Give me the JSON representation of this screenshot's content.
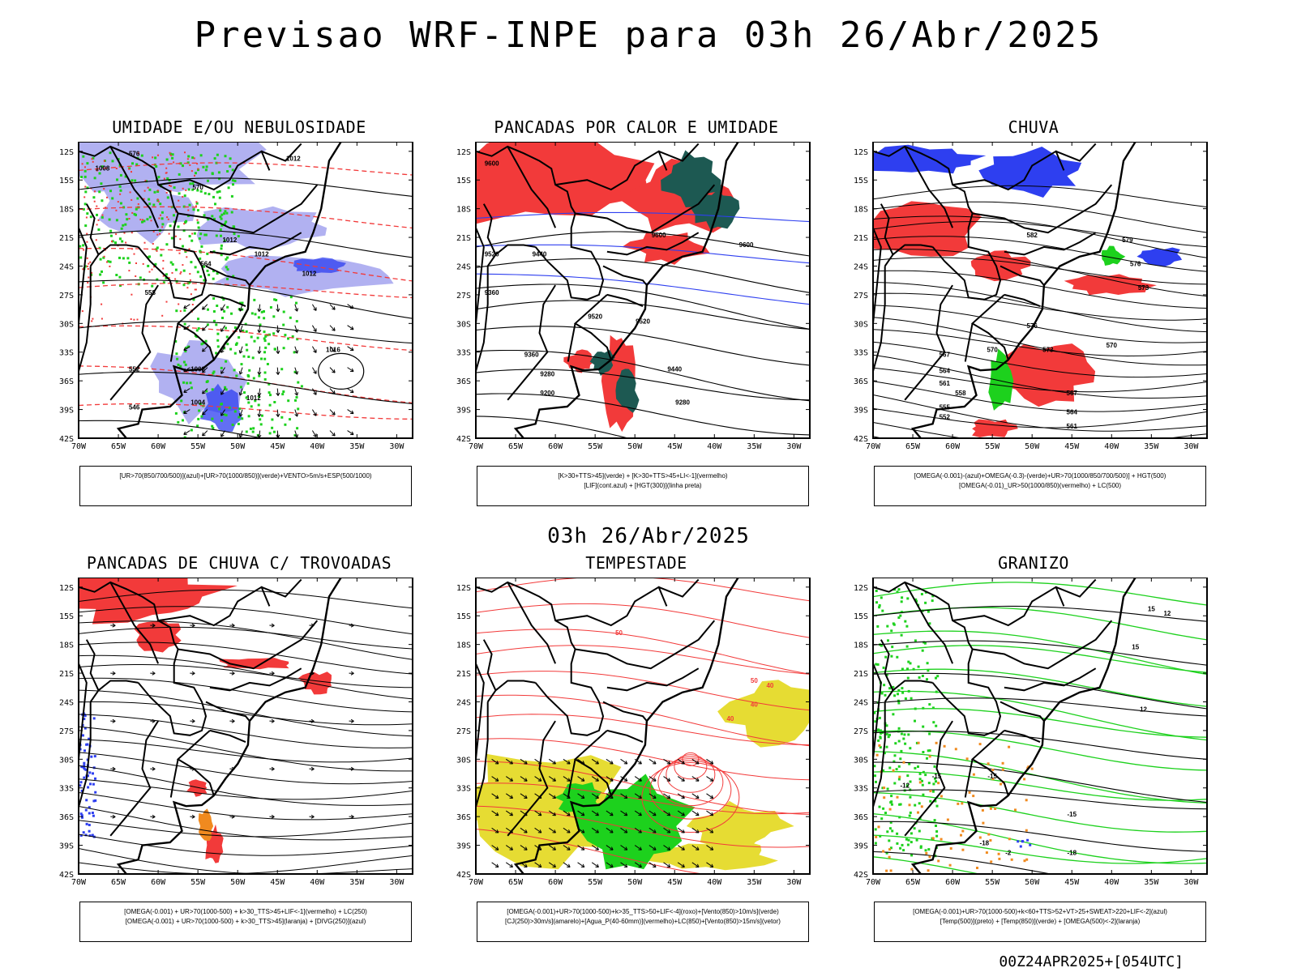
{
  "header": {
    "title": "Previsao WRF-INPE  para 03h 26/Abr/2025"
  },
  "middle": {
    "title": "03h 26/Abr/2025"
  },
  "footer": {
    "run": "00Z24APR2025+[054UTC]"
  },
  "axes": {
    "lat_labels": [
      "12S",
      "15S",
      "18S",
      "21S",
      "24S",
      "27S",
      "30S",
      "33S",
      "36S",
      "39S",
      "42S"
    ],
    "lon_labels": [
      "70W",
      "65W",
      "60W",
      "55W",
      "50W",
      "45W",
      "40W",
      "35W",
      "30W"
    ]
  },
  "colors": {
    "red": "#f23a3a",
    "blue": "#2e3ff0",
    "lavender": "#a9a9ef",
    "green": "#1dd11d",
    "darkgreen": "#1d5952",
    "yellow": "#e6dc33",
    "orange": "#f08a1f"
  },
  "panels": [
    {
      "id": "umidade",
      "title": "UMIDADE E/OU NEBULOSIDADE",
      "legend": [
        "[UR>70(850/700/500)](azul)+[UR>70(1000/850)](verde)+VENTO>5m/s+ESP(500/1000)"
      ],
      "contour_labels": [
        "1008",
        "1012",
        "1012",
        "1012",
        "1012",
        "1016",
        "1008",
        "1004",
        "1012",
        "576",
        "570",
        "564",
        "558",
        "552",
        "546"
      ]
    },
    {
      "id": "pancadas-calor",
      "title": "PANCADAS POR CALOR E UMIDADE",
      "legend": [
        "[K>30+TTS>45](verde) + [K>30+TTS>45+LI<-1](vermelho)",
        "[LIF](cont.azul) + [HGT(300)](linha preta)"
      ],
      "contour_labels": [
        "9600",
        "9600",
        "9600",
        "9520",
        "9520",
        "9520",
        "9440",
        "9440",
        "9360",
        "9360",
        "9280",
        "9280",
        "9200"
      ]
    },
    {
      "id": "chuva",
      "title": "CHUVA",
      "legend": [
        "[OMEGA(-0.001)-(azul)+OMEGA(-0.3)-(verde)+UR>70(1000/850/700/500)] + HGT(500)",
        "[OMEGA(-0.01)_UR>50(1000/850)(vermelho) + LC(500)"
      ],
      "contour_labels": [
        "582",
        "579",
        "576",
        "573",
        "570",
        "567",
        "564",
        "561",
        "558",
        "555",
        "552",
        "576",
        "573",
        "570",
        "567",
        "564",
        "561"
      ]
    },
    {
      "id": "trovoadas",
      "title": "PANCADAS DE CHUVA C/ TROVOADAS",
      "legend": [
        "[OMEGA(-0.001) + UR>70(1000-500) + k>30_TTS>45+LIF<-1](vermelho) + LC(250)",
        "[OMEGA(-0.001) + UR>70(1000-500) + k>30_TTS>45](laranja) + [DIVG(250)](azul)"
      ],
      "contour_labels": []
    },
    {
      "id": "tempestade",
      "title": "TEMPESTADE",
      "legend": [
        "[OMEGA(-0.001)+UR>70(1000-500)+k>35_TTS>50+LIF<-4](roxo)+[Vento(850)>10m/s](verde)",
        "[CJ(250)>30m/s](amarelo)+[Agua_P(40-60mm)](vermelho)+LC(850)+[Vento(850)>15m/s](vetor)"
      ],
      "contour_labels": [
        "50",
        "40",
        "40",
        "50",
        "40"
      ]
    },
    {
      "id": "granizo",
      "title": "GRANIZO",
      "legend": [
        "[OMEGA(-0.001)+UR>70(1000-500)+k<60+TTS>52+VT>25+SWEAT>220+LIF<-2](azul)",
        "[Temp(500)](preto) + [Temp(850)](verde) + [OMEGA(500)<-2](laranja)"
      ],
      "contour_labels": [
        "12",
        "15",
        "12",
        "-15",
        "-15",
        "-18",
        "-18",
        "-15",
        "-12",
        "-2",
        "15"
      ]
    }
  ]
}
